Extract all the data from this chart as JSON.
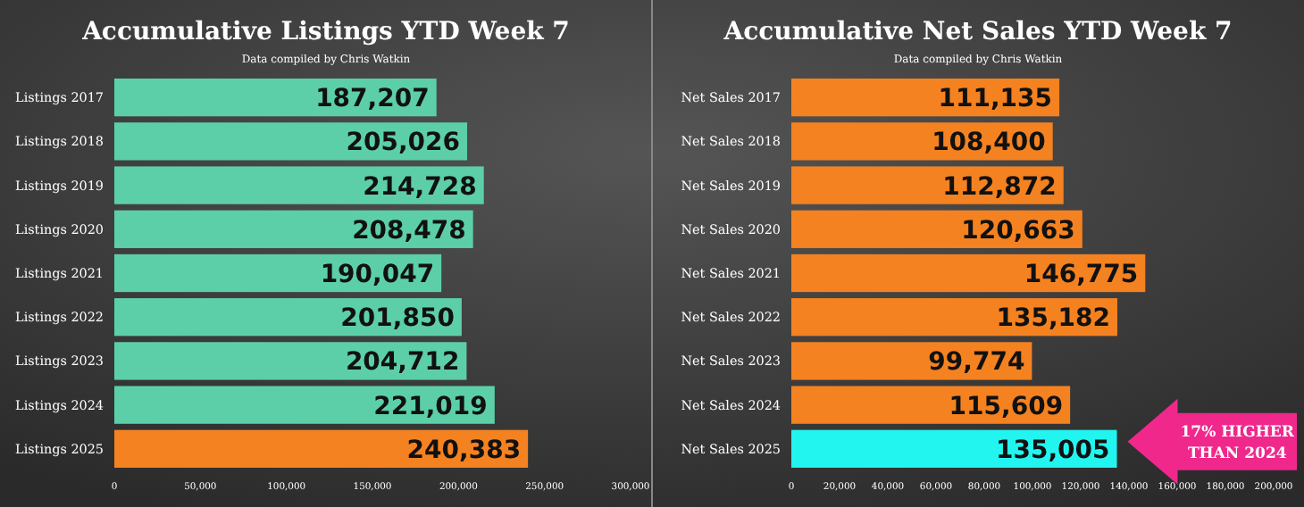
{
  "chart_data": [
    {
      "type": "bar",
      "orientation": "horizontal",
      "title": "Accumulative Listings YTD Week 7",
      "subtitle": "Data compiled by Chris Watkin",
      "categories": [
        "Listings 2017",
        "Listings 2018",
        "Listings 2019",
        "Listings 2020",
        "Listings 2021",
        "Listings 2022",
        "Listings 2023",
        "Listings 2024",
        "Listings 2025"
      ],
      "values": [
        187207,
        205026,
        214728,
        208478,
        190047,
        201850,
        204712,
        221019,
        240383
      ],
      "colors": [
        "#5ccfa9",
        "#5ccfa9",
        "#5ccfa9",
        "#5ccfa9",
        "#5ccfa9",
        "#5ccfa9",
        "#5ccfa9",
        "#5ccfa9",
        "#f58220"
      ],
      "xlim": [
        0,
        300000
      ],
      "xticks": [
        0,
        {
          "value": 50000,
          "label": "50,000"
        },
        {
          "value": 100000,
          "label": "100,000"
        },
        {
          "value": 150000,
          "label": "150,000"
        },
        {
          "value": 200000,
          "label": "200,000"
        },
        {
          "value": 250000,
          "label": "250,000"
        },
        {
          "value": 300000,
          "label": "300,000"
        }
      ],
      "value_labels": [
        "187,207",
        "205,026",
        "214,728",
        "208,478",
        "190,047",
        "201,850",
        "204,712",
        "221,019",
        "240,383"
      ]
    },
    {
      "type": "bar",
      "orientation": "horizontal",
      "title": "Accumulative Net Sales YTD Week 7",
      "subtitle": "Data compiled by Chris Watkin",
      "categories": [
        "Net Sales 2017",
        "Net Sales 2018",
        "Net Sales 2019",
        "Net Sales 2020",
        "Net Sales 2021",
        "Net Sales 2022",
        "Net Sales 2023",
        "Net Sales 2024",
        "Net Sales 2025"
      ],
      "values": [
        111135,
        108400,
        112872,
        120663,
        146775,
        135182,
        99774,
        115609,
        135005
      ],
      "colors": [
        "#f58220",
        "#f58220",
        "#f58220",
        "#f58220",
        "#f58220",
        "#f58220",
        "#f58220",
        "#f58220",
        "#22f5f0"
      ],
      "xlim": [
        0,
        200000
      ],
      "xticks": [
        0,
        {
          "value": 20000,
          "label": "20,000"
        },
        {
          "value": 40000,
          "label": "40,000"
        },
        {
          "value": 60000,
          "label": "60,000"
        },
        {
          "value": 80000,
          "label": "80,000"
        },
        {
          "value": 100000,
          "label": "100,000"
        },
        {
          "value": 120000,
          "label": "120,000"
        },
        {
          "value": 140000,
          "label": "140,000"
        },
        {
          "value": 160000,
          "label": "160,000"
        },
        {
          "value": 180000,
          "label": "180,000"
        },
        {
          "value": 200000,
          "label": "200,000"
        }
      ],
      "value_labels": [
        "111,135",
        "108,400",
        "112,872",
        "120,663",
        "146,775",
        "135,182",
        "99,774",
        "115,609",
        "135,005"
      ],
      "annotations": [
        "17% HIGHER THAN 2024"
      ]
    }
  ]
}
